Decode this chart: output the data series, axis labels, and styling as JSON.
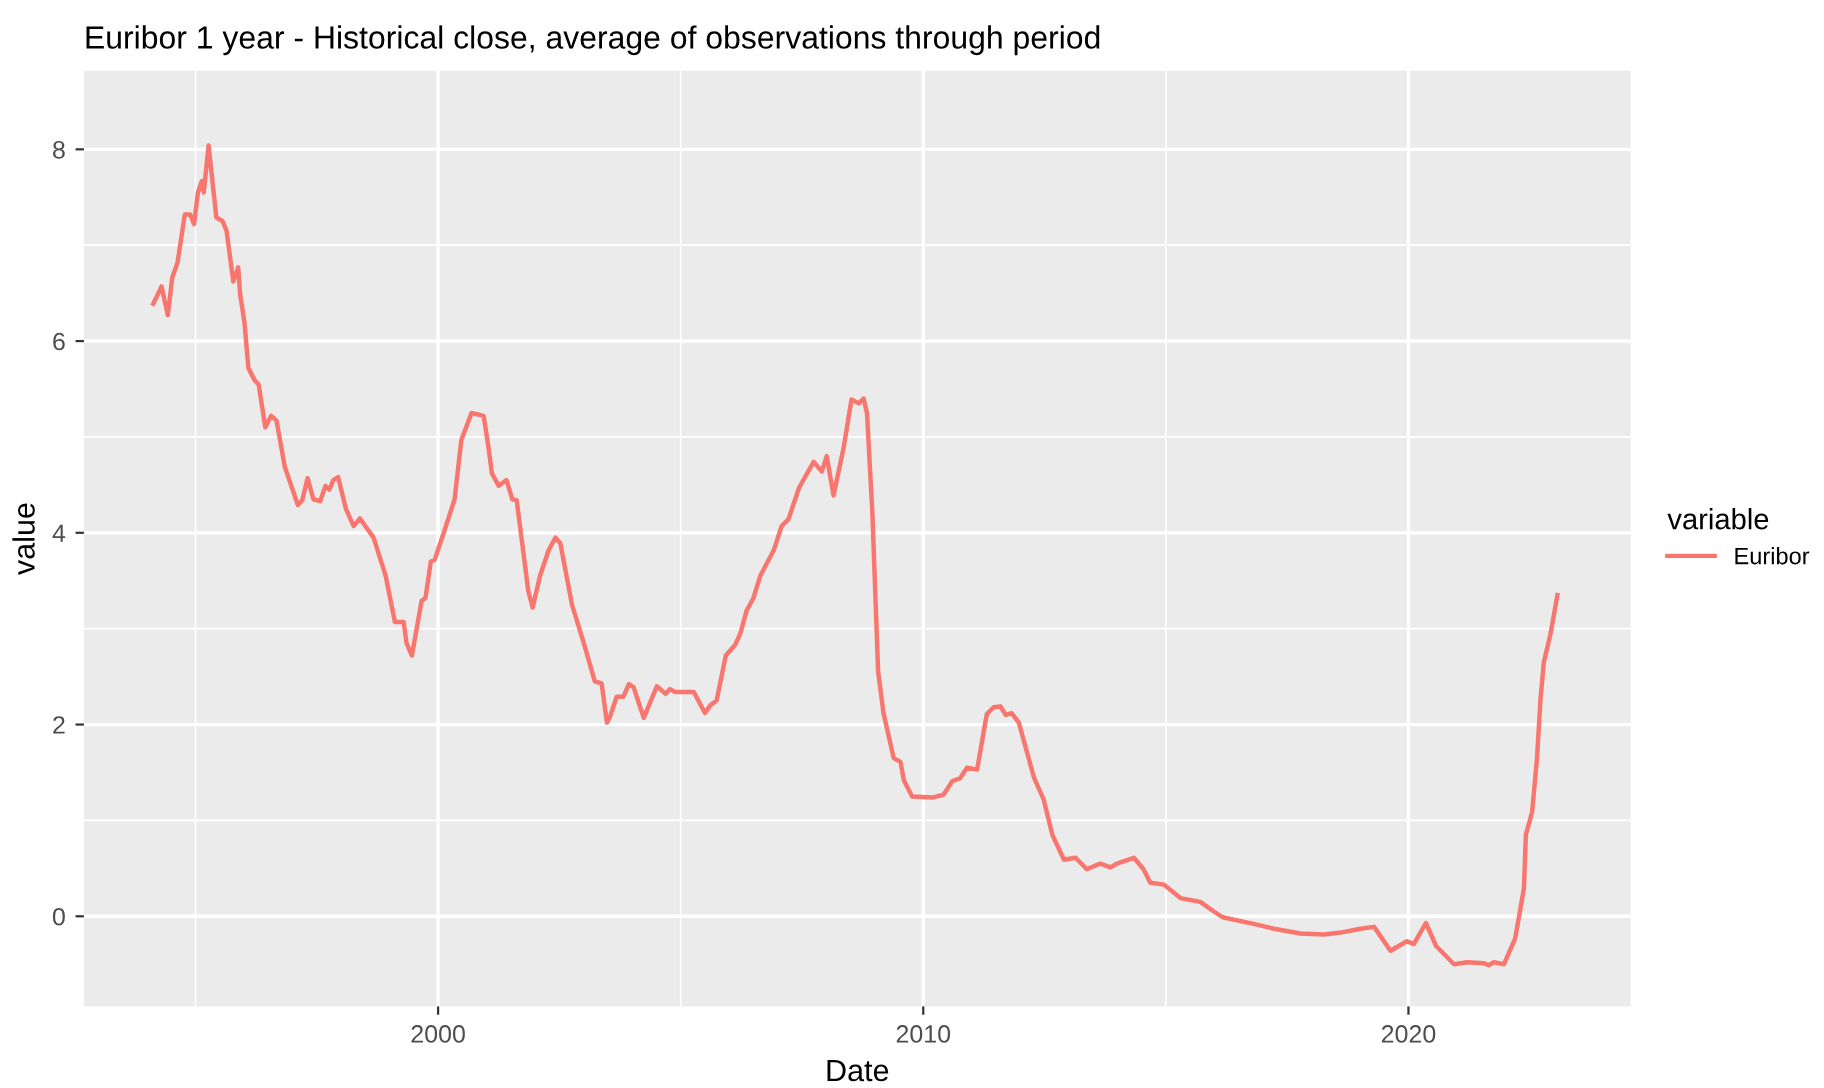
{
  "chart_data": {
    "type": "line",
    "title": "Euribor 1 year - Historical close, average of observations through period",
    "xlabel": "Date",
    "ylabel": "value",
    "legend_title": "variable",
    "x": [
      1994.13,
      1994.3,
      1994.43,
      1994.52,
      1994.63,
      1994.78,
      1994.89,
      1994.97,
      1995.05,
      1995.13,
      1995.17,
      1995.27,
      1995.43,
      1995.56,
      1995.64,
      1995.78,
      1995.88,
      1995.92,
      1996.01,
      1996.09,
      1996.22,
      1996.3,
      1996.44,
      1996.56,
      1996.67,
      1996.84,
      1997.11,
      1997.2,
      1997.31,
      1997.43,
      1997.57,
      1997.68,
      1997.76,
      1997.84,
      1997.94,
      1998.1,
      1998.26,
      1998.39,
      1998.67,
      1998.92,
      1999.11,
      1999.29,
      1999.35,
      1999.46,
      1999.66,
      1999.74,
      1999.85,
      1999.93,
      2000.11,
      2000.34,
      2000.48,
      2000.69,
      2000.94,
      2001.03,
      2001.11,
      2001.25,
      2001.41,
      2001.53,
      2001.62,
      2001.86,
      2001.95,
      2002.1,
      2002.28,
      2002.42,
      2002.52,
      2002.76,
      2003.02,
      2003.23,
      2003.37,
      2003.48,
      2003.55,
      2003.68,
      2003.82,
      2003.93,
      2004.03,
      2004.14,
      2004.24,
      2004.51,
      2004.69,
      2004.78,
      2004.88,
      2005.27,
      2005.5,
      2005.61,
      2005.74,
      2005.93,
      2006.12,
      2006.23,
      2006.36,
      2006.5,
      2006.64,
      2006.92,
      2007.08,
      2007.22,
      2007.44,
      2007.74,
      2007.91,
      2008.01,
      2008.15,
      2008.36,
      2008.52,
      2008.67,
      2008.77,
      2008.84,
      2008.95,
      2009.07,
      2009.18,
      2009.39,
      2009.53,
      2009.6,
      2009.77,
      2010.21,
      2010.42,
      2010.6,
      2010.76,
      2010.9,
      2011.11,
      2011.31,
      2011.45,
      2011.59,
      2011.7,
      2011.82,
      2011.97,
      2012.28,
      2012.48,
      2012.66,
      2012.9,
      2013.14,
      2013.37,
      2013.65,
      2013.86,
      2013.99,
      2014.34,
      2014.54,
      2014.68,
      2014.96,
      2015.3,
      2015.71,
      2015.99,
      2016.17,
      2016.54,
      2016.81,
      2017.23,
      2017.77,
      2018.26,
      2018.6,
      2019.01,
      2019.29,
      2019.63,
      2019.97,
      2020.11,
      2020.36,
      2020.57,
      2020.94,
      2021.21,
      2021.56,
      2021.65,
      2021.76,
      2021.97,
      2022.2,
      2022.38,
      2022.42,
      2022.55,
      2022.65,
      2022.72,
      2022.79,
      2022.93,
      2023.07
    ],
    "series": [
      {
        "name": "Euribor",
        "color": "#f8766d",
        "values": [
          6.39,
          6.57,
          6.27,
          6.66,
          6.82,
          7.32,
          7.32,
          7.22,
          7.55,
          7.67,
          7.55,
          8.04,
          7.29,
          7.25,
          7.15,
          6.62,
          6.77,
          6.49,
          6.19,
          5.72,
          5.59,
          5.55,
          5.1,
          5.22,
          5.17,
          4.69,
          4.29,
          4.34,
          4.57,
          4.35,
          4.33,
          4.49,
          4.45,
          4.55,
          4.58,
          4.25,
          4.07,
          4.15,
          3.95,
          3.55,
          3.07,
          3.07,
          2.85,
          2.72,
          3.29,
          3.32,
          3.7,
          3.72,
          3.99,
          4.35,
          4.97,
          5.25,
          5.22,
          4.92,
          4.62,
          4.49,
          4.55,
          4.35,
          4.34,
          3.39,
          3.22,
          3.55,
          3.82,
          3.95,
          3.89,
          3.25,
          2.82,
          2.45,
          2.43,
          2.02,
          2.09,
          2.29,
          2.29,
          2.42,
          2.39,
          2.22,
          2.07,
          2.4,
          2.32,
          2.37,
          2.34,
          2.34,
          2.12,
          2.2,
          2.25,
          2.72,
          2.83,
          2.95,
          3.19,
          3.32,
          3.55,
          3.82,
          4.07,
          4.14,
          4.47,
          4.74,
          4.64,
          4.8,
          4.39,
          4.89,
          5.39,
          5.35,
          5.4,
          5.25,
          4.22,
          2.55,
          2.12,
          1.65,
          1.61,
          1.42,
          1.25,
          1.24,
          1.27,
          1.41,
          1.44,
          1.55,
          1.53,
          2.11,
          2.18,
          2.19,
          2.1,
          2.12,
          2.02,
          1.45,
          1.22,
          0.85,
          0.59,
          0.61,
          0.49,
          0.55,
          0.51,
          0.55,
          0.61,
          0.49,
          0.35,
          0.33,
          0.19,
          0.15,
          0.05,
          -0.01,
          -0.05,
          -0.08,
          -0.13,
          -0.18,
          -0.19,
          -0.17,
          -0.13,
          -0.11,
          -0.36,
          -0.26,
          -0.29,
          -0.07,
          -0.31,
          -0.5,
          -0.48,
          -0.49,
          -0.51,
          -0.48,
          -0.5,
          -0.23,
          0.29,
          0.85,
          1.09,
          1.65,
          2.25,
          2.65,
          2.95,
          3.35
        ]
      }
    ],
    "xlim": [
      1992.7,
      2024.58
    ],
    "xticks": [
      2000,
      2010,
      2020
    ],
    "ylim": [
      -0.94,
      8.82
    ],
    "yticks": [
      0,
      2,
      4,
      6,
      8
    ],
    "grid": true,
    "legend": "right",
    "marker": "none",
    "line_style": "solid"
  }
}
